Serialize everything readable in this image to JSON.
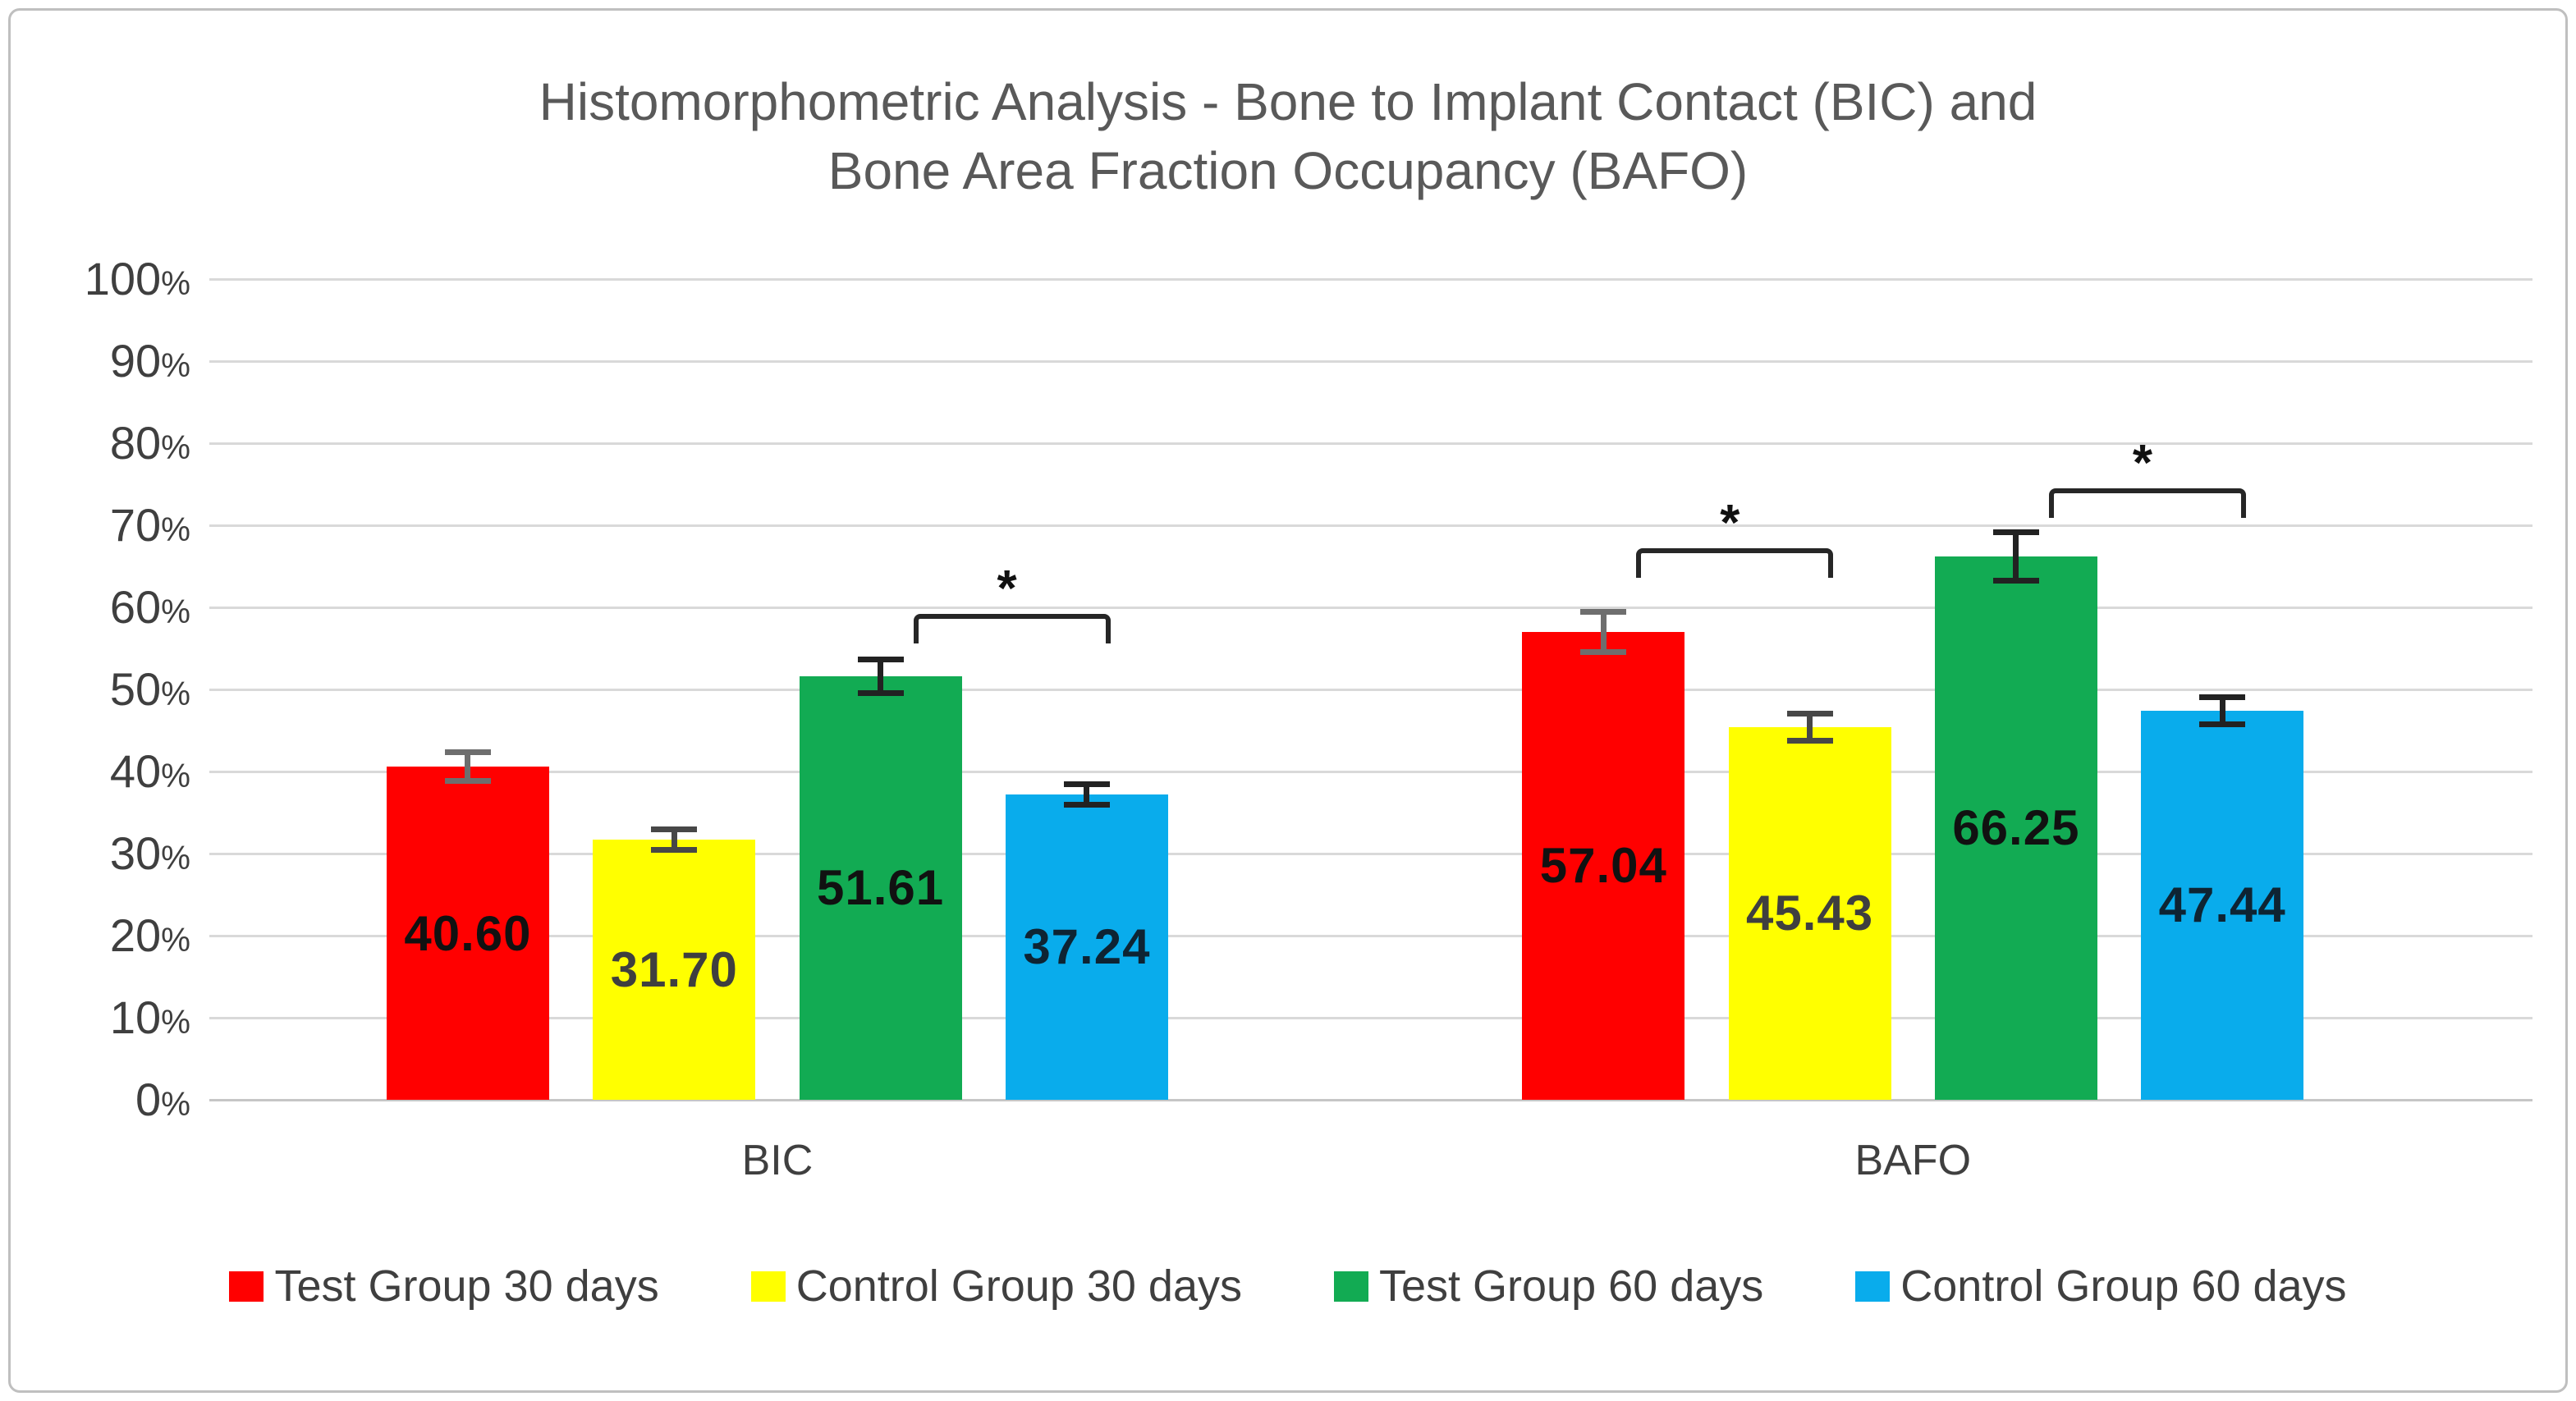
{
  "title": "Histomorphometric Analysis - Bone to Implant Contact (BIC) and\nBone Area Fraction Occupancy (BAFO)",
  "y_axis": {
    "tick_values": [
      0,
      10,
      20,
      30,
      40,
      50,
      60,
      70,
      80,
      90,
      100
    ],
    "suffix": "%"
  },
  "style": {
    "grid_color": "#D9D9D9",
    "axis_line_color": "#C6C6C6",
    "frame_border_color": "#BFBFBF",
    "title_color": "#595959",
    "text_color": "#3F3F3F",
    "bracket_color": "#262626"
  },
  "chart_data": {
    "type": "bar",
    "title": "Histomorphometric Analysis - Bone to Implant Contact (BIC) and Bone Area Fraction Occupancy (BAFO)",
    "categories": [
      "BIC",
      "BAFO"
    ],
    "series": [
      {
        "name": "Test Group 30 days",
        "color": "#FF0000",
        "values": [
          40.6,
          57.04
        ],
        "labels": [
          "40.60",
          "57.04"
        ],
        "errors": [
          2.1,
          2.8
        ],
        "error_color": "#6E6E6E",
        "label_color": "#111111"
      },
      {
        "name": "Control Group 30 days",
        "color": "#FFFF00",
        "values": [
          31.7,
          45.43
        ],
        "labels": [
          "31.70",
          "45.43"
        ],
        "errors": [
          1.6,
          2.0
        ],
        "error_color": "#474747",
        "label_color": "#3F3F3F"
      },
      {
        "name": "Test Group 60 days",
        "color": "#12AB53",
        "values": [
          51.61,
          66.25
        ],
        "labels": [
          "51.61",
          "66.25"
        ],
        "errors": [
          2.4,
          3.3
        ],
        "error_color": "#222222",
        "label_color": "#111111"
      },
      {
        "name": "Control Group 60 days",
        "color": "#09ACEC",
        "values": [
          37.24,
          47.44
        ],
        "labels": [
          "37.24",
          "47.44"
        ],
        "errors": [
          1.6,
          2.0
        ],
        "error_color": "#222222",
        "label_color": "#0E2433"
      }
    ],
    "significance": [
      {
        "category": "BIC",
        "from_series": 2,
        "to_series": 3,
        "label": "*",
        "height_pct": 59.2
      },
      {
        "category": "BAFO",
        "from_series": 0,
        "to_series": 1,
        "label": "*",
        "height_pct": 67.2
      },
      {
        "category": "BAFO",
        "from_series": 2,
        "to_series": 3,
        "label": "*",
        "height_pct": 74.5
      }
    ],
    "ylim": [
      0,
      100
    ],
    "grid": true,
    "legend_position": "bottom"
  }
}
